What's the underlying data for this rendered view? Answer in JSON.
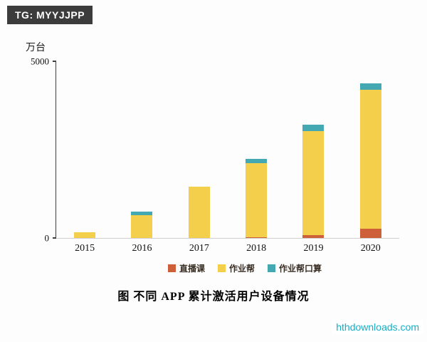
{
  "watermarks": {
    "tg_badge": "TG: MYYJJPP",
    "site": "hthdownloads.com"
  },
  "chart_data": {
    "type": "bar",
    "stacked": true,
    "title": "图 不同 APP 累计激活用户设备情况",
    "unit_label": "万台",
    "categories": [
      "2015",
      "2016",
      "2017",
      "2018",
      "2019",
      "2020"
    ],
    "series": [
      {
        "key": "live-class",
        "name": "直播课",
        "color": "#cd6038",
        "values": [
          0,
          0,
          0,
          30,
          80,
          270
        ]
      },
      {
        "key": "zuoyebang",
        "name": "作业帮",
        "color": "#f4cf4b",
        "values": [
          170,
          650,
          1450,
          2080,
          2950,
          3930
        ]
      },
      {
        "key": "zuoyebang-oral",
        "name": "作业帮口算",
        "color": "#44a8b3",
        "values": [
          0,
          100,
          0,
          130,
          170,
          170
        ]
      }
    ],
    "ylim": [
      0,
      5000
    ],
    "yticks": [
      0,
      5000
    ],
    "legend_position": "bottom",
    "grid": false
  }
}
